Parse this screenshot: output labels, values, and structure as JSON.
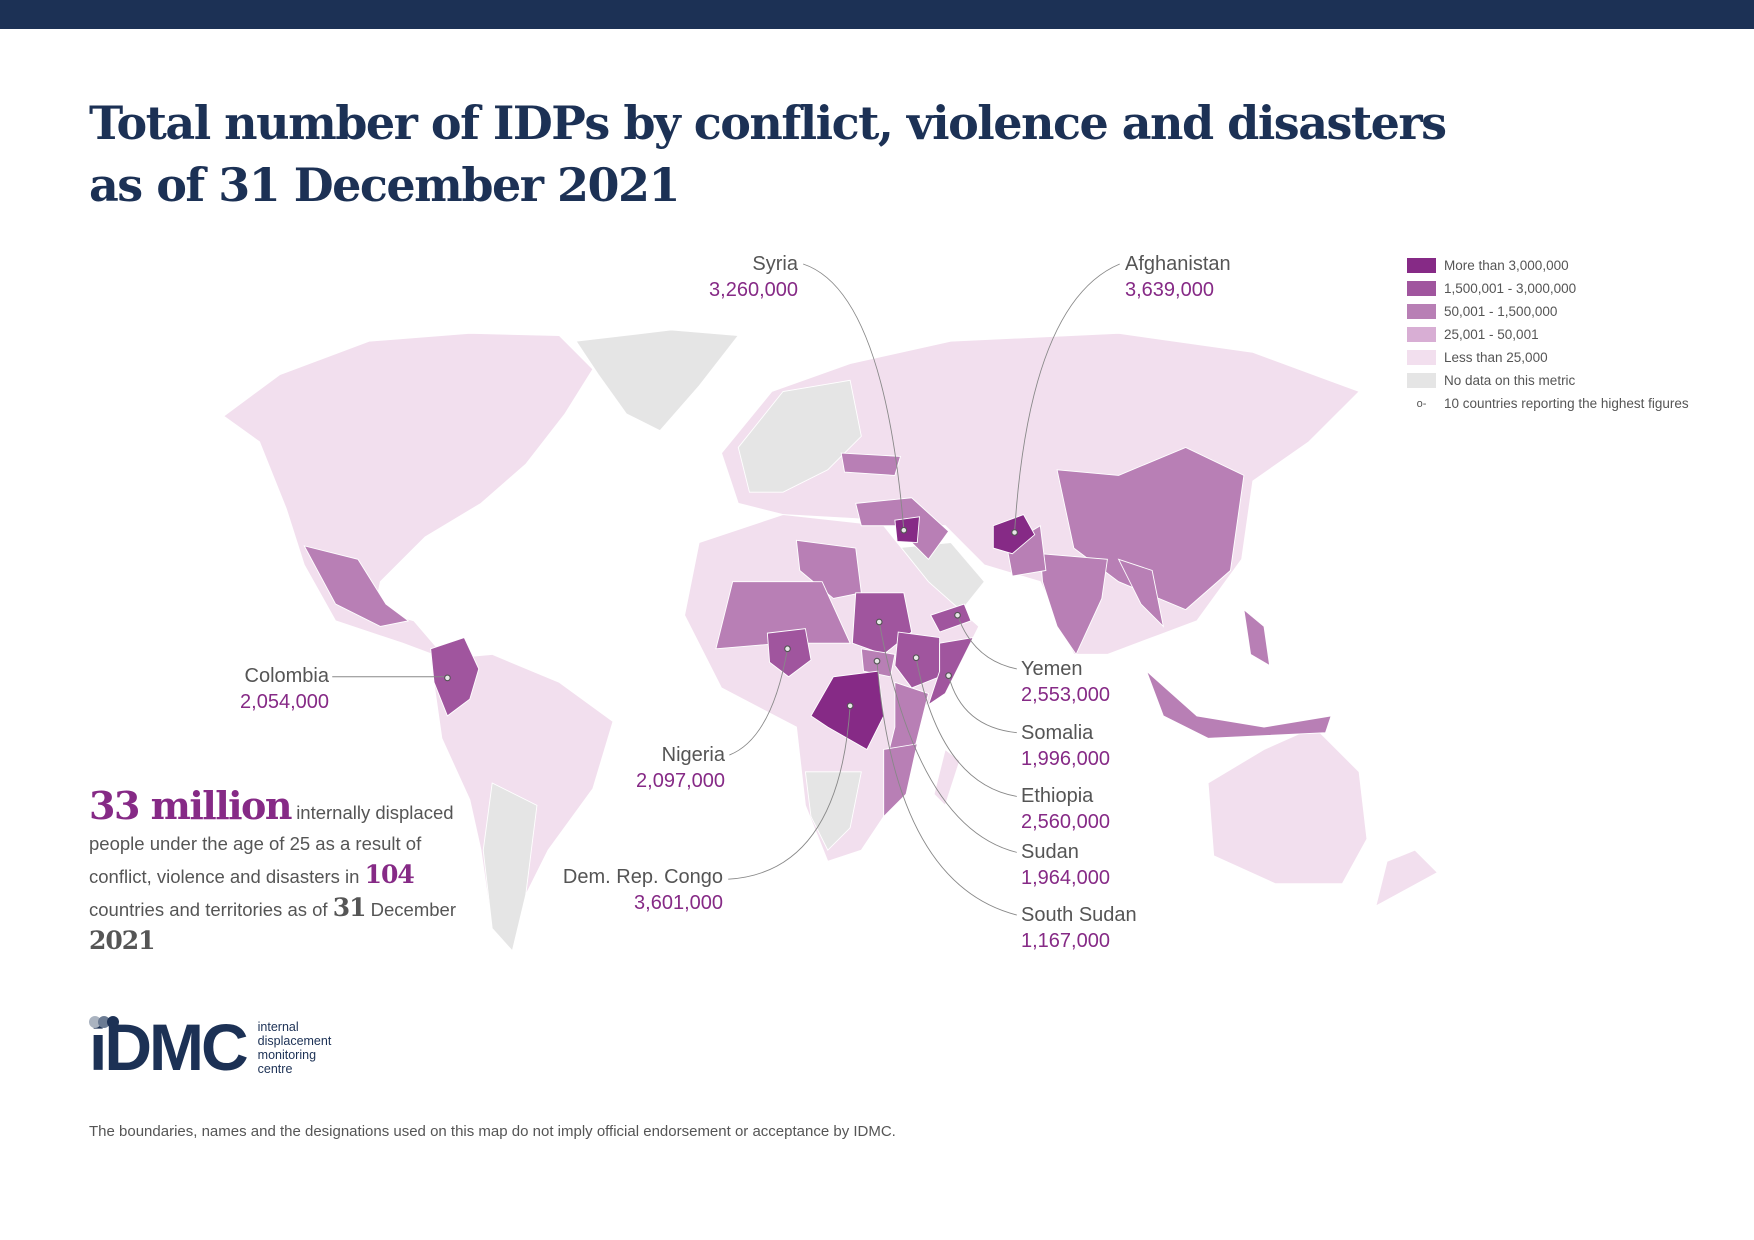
{
  "title": {
    "line1": "Total number of IDPs by conflict, violence and disasters",
    "line2": "as of 31 December 2021"
  },
  "legend": {
    "items": [
      {
        "label": "More than 3,000,000",
        "color": "#862a86"
      },
      {
        "label": "1,500,001 - 3,000,000",
        "color": "#a0559e"
      },
      {
        "label": "50,001 - 1,500,000",
        "color": "#b87fb5"
      },
      {
        "label": "25,001 - 50,001",
        "color": "#d8aed4"
      },
      {
        "label": "Less than 25,000",
        "color": "#f2dfee"
      },
      {
        "label": "No data on this metric",
        "color": "#e5e5e5"
      }
    ],
    "marker_symbol": "o-",
    "marker_label": "10 countries reporting the highest figures"
  },
  "countries": {
    "syria": {
      "name": "Syria",
      "value": "3,260,000"
    },
    "afghanistan": {
      "name": "Afghanistan",
      "value": "3,639,000"
    },
    "colombia": {
      "name": "Colombia",
      "value": "2,054,000"
    },
    "nigeria": {
      "name": "Nigeria",
      "value": "2,097,000"
    },
    "drc": {
      "name": "Dem. Rep. Congo",
      "value": "3,601,000"
    },
    "yemen": {
      "name": "Yemen",
      "value": "2,553,000"
    },
    "somalia": {
      "name": "Somalia",
      "value": "1,996,000"
    },
    "ethiopia": {
      "name": "Ethiopia",
      "value": "2,560,000"
    },
    "sudan": {
      "name": "Sudan",
      "value": "1,964,000"
    },
    "south_sudan": {
      "name": "South Sudan",
      "value": "1,167,000"
    }
  },
  "stats": {
    "big_number": "33 million",
    "text1": "internally displaced people under the age of 25 as a result of conflict, violence and disasters in",
    "countries_count": "104",
    "text2": "countries and territories as of",
    "day": "31",
    "month": "December",
    "year": "2021"
  },
  "logo": {
    "mark": "iDMC",
    "line1": "internal",
    "line2": "displacement",
    "line3": "monitoring",
    "line4": "centre"
  },
  "disclaimer": "The boundaries, names and the designations used on this map do not imply official endorsement or acceptance by IDMC."
}
